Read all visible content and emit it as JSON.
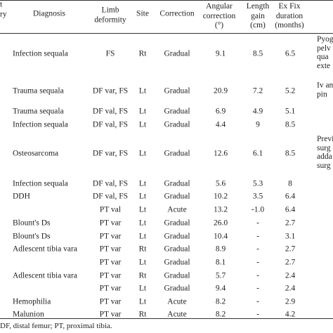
{
  "header": {
    "history_fragment": [
      "t",
      "ry"
    ],
    "diagnosis": "Diagnosis",
    "limb_deformity": [
      "Limb",
      "deformity"
    ],
    "site": "Site",
    "correction": "Correction",
    "angular_correction": [
      "Angular",
      "correction",
      "(°)"
    ],
    "length_gain": [
      "Length",
      "gain",
      "(cm)"
    ],
    "ex_fix": [
      "Ex Fix",
      "duration",
      "(months)"
    ]
  },
  "rows": [
    {
      "diagnosis": "Infection sequala",
      "deformity": "FS",
      "site": "Rt",
      "correction": "Gradual",
      "angle": "9.1",
      "length": "8.5",
      "exfix": "6.5",
      "note": [
        "Pyog",
        "pelv",
        "qua",
        "exte"
      ]
    },
    {
      "diagnosis": "Trauma sequala",
      "deformity": "DF var, FS",
      "site": "Lt",
      "correction": "Gradual",
      "angle": "20.9",
      "length": "7.2",
      "exfix": "5.2",
      "note": [
        "Iv an",
        "pin"
      ]
    },
    {
      "diagnosis": "Trauma sequala",
      "deformity": "DF val, FS",
      "site": "Lt",
      "correction": "Gradual",
      "angle": "6.9",
      "length": "4.9",
      "exfix": "5.1",
      "note": []
    },
    {
      "diagnosis": "Infection sequala",
      "deformity": "DF val, FS",
      "site": "Lt",
      "correction": "Gradual",
      "angle": "4.4",
      "length": "9",
      "exfix": "8.5",
      "note": []
    },
    {
      "diagnosis": "Osteosarcoma",
      "deformity": "DF var, FS",
      "site": "Lt",
      "correction": "Gradual",
      "angle": "12.6",
      "length": "6.1",
      "exfix": "8.5",
      "note": [
        "Previ",
        "surg",
        "adda",
        "surg"
      ]
    },
    {
      "diagnosis": "Infection sequala",
      "deformity": "DF val, FS",
      "site": "Lt",
      "correction": "Gradual",
      "angle": "5.6",
      "length": "5.3",
      "exfix": "8",
      "note": []
    },
    {
      "diagnosis": "DDH",
      "deformity": "DF val, FS",
      "site": "Lt",
      "correction": "Gradual",
      "angle": "10.2",
      "length": "3.5",
      "exfix": "6.4",
      "note": []
    },
    {
      "diagnosis": "",
      "deformity": "PT val",
      "site": "Lt",
      "correction": "Acute",
      "angle": "13.2",
      "length": "-1.0",
      "exfix": "6.4",
      "note": []
    },
    {
      "diagnosis": "Blount's Ds",
      "deformity": "PT var",
      "site": "Lt",
      "correction": "Gradual",
      "angle": "26.0",
      "length": "-",
      "exfix": "2.7",
      "note": []
    },
    {
      "diagnosis": "Blount's Ds",
      "deformity": "PT var",
      "site": "Lt",
      "correction": "Gradual",
      "angle": "10.4",
      "length": "-",
      "exfix": "3.1",
      "note": []
    },
    {
      "diagnosis": "Adlescent tibia vara",
      "deformity": "PT var",
      "site": "Rt",
      "correction": "Gradual",
      "angle": "8.9",
      "length": "-",
      "exfix": "2.7",
      "note": []
    },
    {
      "diagnosis": "",
      "deformity": "PT var",
      "site": "Lt",
      "correction": "Gradual",
      "angle": "8.1",
      "length": "-",
      "exfix": "2.7",
      "note": []
    },
    {
      "diagnosis": "Adlescent tibia vara",
      "deformity": "PT var",
      "site": "Rt",
      "correction": "Gradual",
      "angle": "5.7",
      "length": "-",
      "exfix": "2.4",
      "note": []
    },
    {
      "diagnosis": "",
      "deformity": "PT var",
      "site": "Lt",
      "correction": "Gradual",
      "angle": "9.4",
      "length": "-",
      "exfix": "2.4",
      "note": []
    },
    {
      "diagnosis": "Hemophilia",
      "deformity": "PT var",
      "site": "Lt",
      "correction": "Acute",
      "angle": "8.2",
      "length": "-",
      "exfix": "2.9",
      "note": []
    },
    {
      "diagnosis": "Malunion",
      "deformity": "PT var",
      "site": "Rt",
      "correction": "Acute",
      "angle": "8.2",
      "length": "-",
      "exfix": "4.2",
      "note": []
    }
  ],
  "footnote": "DF, distal femur; PT,  proximal tibia."
}
